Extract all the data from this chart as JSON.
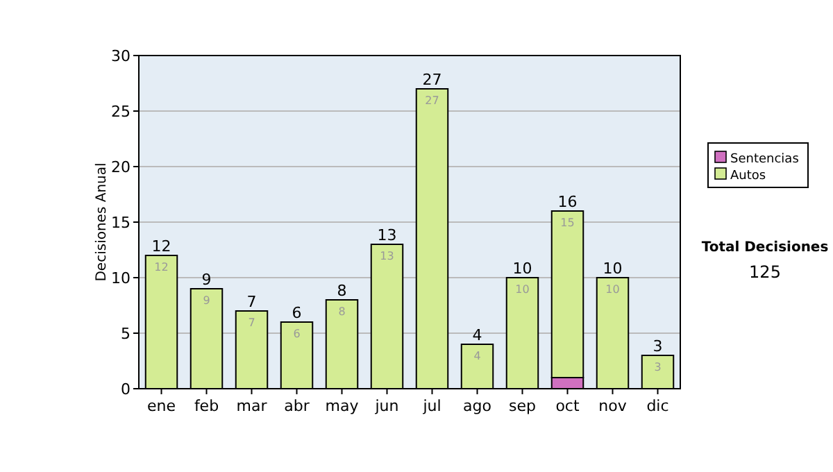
{
  "chart_data": {
    "type": "bar",
    "stacked": true,
    "ylabel": "Decisiones Anual",
    "categories": [
      "ene",
      "feb",
      "mar",
      "abr",
      "may",
      "jun",
      "jul",
      "ago",
      "sep",
      "oct",
      "nov",
      "dic"
    ],
    "series": [
      {
        "name": "Sentencias",
        "color": "#d070c0",
        "values": [
          0,
          0,
          0,
          0,
          0,
          0,
          0,
          0,
          0,
          1,
          0,
          0
        ]
      },
      {
        "name": "Autos",
        "color": "#d4ec94",
        "values": [
          12,
          9,
          7,
          6,
          8,
          13,
          27,
          4,
          10,
          15,
          10,
          3
        ],
        "value_labels": [
          "12",
          "9",
          "7",
          "6",
          "8",
          "13",
          "27",
          "4",
          "10",
          "15",
          "10",
          "3"
        ]
      }
    ],
    "totals": [
      "12",
      "9",
      "7",
      "6",
      "8",
      "13",
      "27",
      "4",
      "10",
      "16",
      "10",
      "3"
    ],
    "ylim": [
      0,
      30
    ],
    "yticks": [
      0,
      5,
      10,
      15,
      20,
      25,
      30
    ],
    "grid": "y",
    "legend": "right",
    "annotations": [
      "Total Decisiones",
      "125"
    ]
  }
}
